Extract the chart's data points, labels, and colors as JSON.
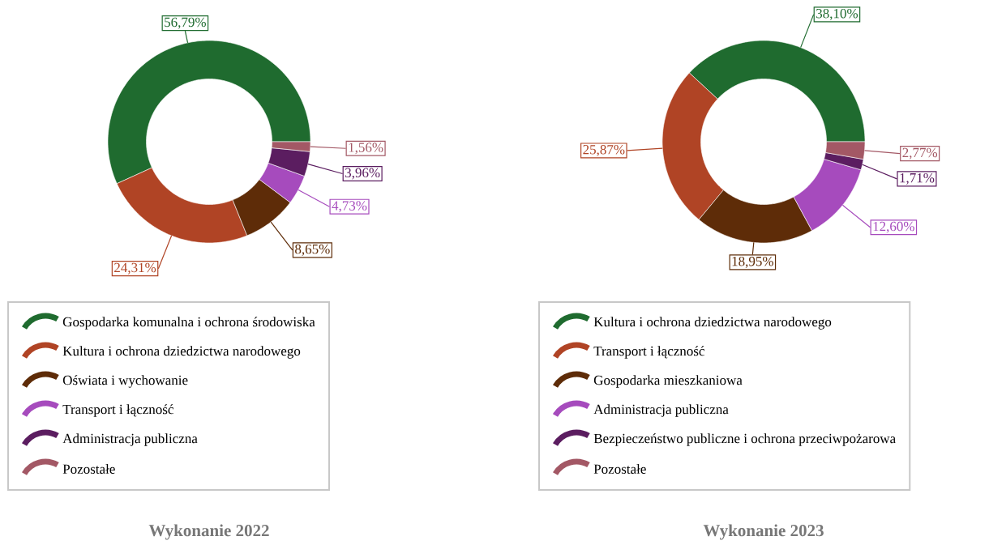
{
  "chart_data": [
    {
      "type": "donut",
      "title": "Wykonanie 2022",
      "legend": "bottom",
      "categories": [
        "Gospodarka komunalna i ochrona środowiska",
        "Kultura i ochrona dziedzictwa narodowego",
        "Oświata i wychowanie",
        "Transport i łączność",
        "Administracja publiczna",
        "Pozostałe"
      ],
      "values": [
        56.79,
        24.31,
        8.65,
        4.73,
        3.96,
        1.56
      ],
      "value_labels": [
        "56,79%",
        "24,31%",
        "8,65%",
        "4,73%",
        "3,96%",
        "1,56%"
      ],
      "colors": [
        "#1f6b2f",
        "#b04425",
        "#5e2c08",
        "#a64bbd",
        "#5b1d60",
        "#a35865"
      ]
    },
    {
      "type": "donut",
      "title": "Wykonanie 2023",
      "legend": "bottom",
      "categories": [
        "Kultura i ochrona dziedzictwa narodowego",
        "Transport i łączność",
        "Gospodarka mieszkaniowa",
        "Administracja publiczna",
        "Bezpieczeństwo publiczne i ochrona przeciwpożarowa",
        "Pozostałe"
      ],
      "values": [
        38.1,
        25.87,
        18.95,
        12.6,
        1.71,
        2.77
      ],
      "value_labels": [
        "38,10%",
        "25,87%",
        "18,95%",
        "12,60%",
        "1,71%",
        "2,77%"
      ],
      "colors": [
        "#1f6b2f",
        "#b04425",
        "#5e2c08",
        "#a64bbd",
        "#5b1d60",
        "#a35865"
      ]
    }
  ]
}
